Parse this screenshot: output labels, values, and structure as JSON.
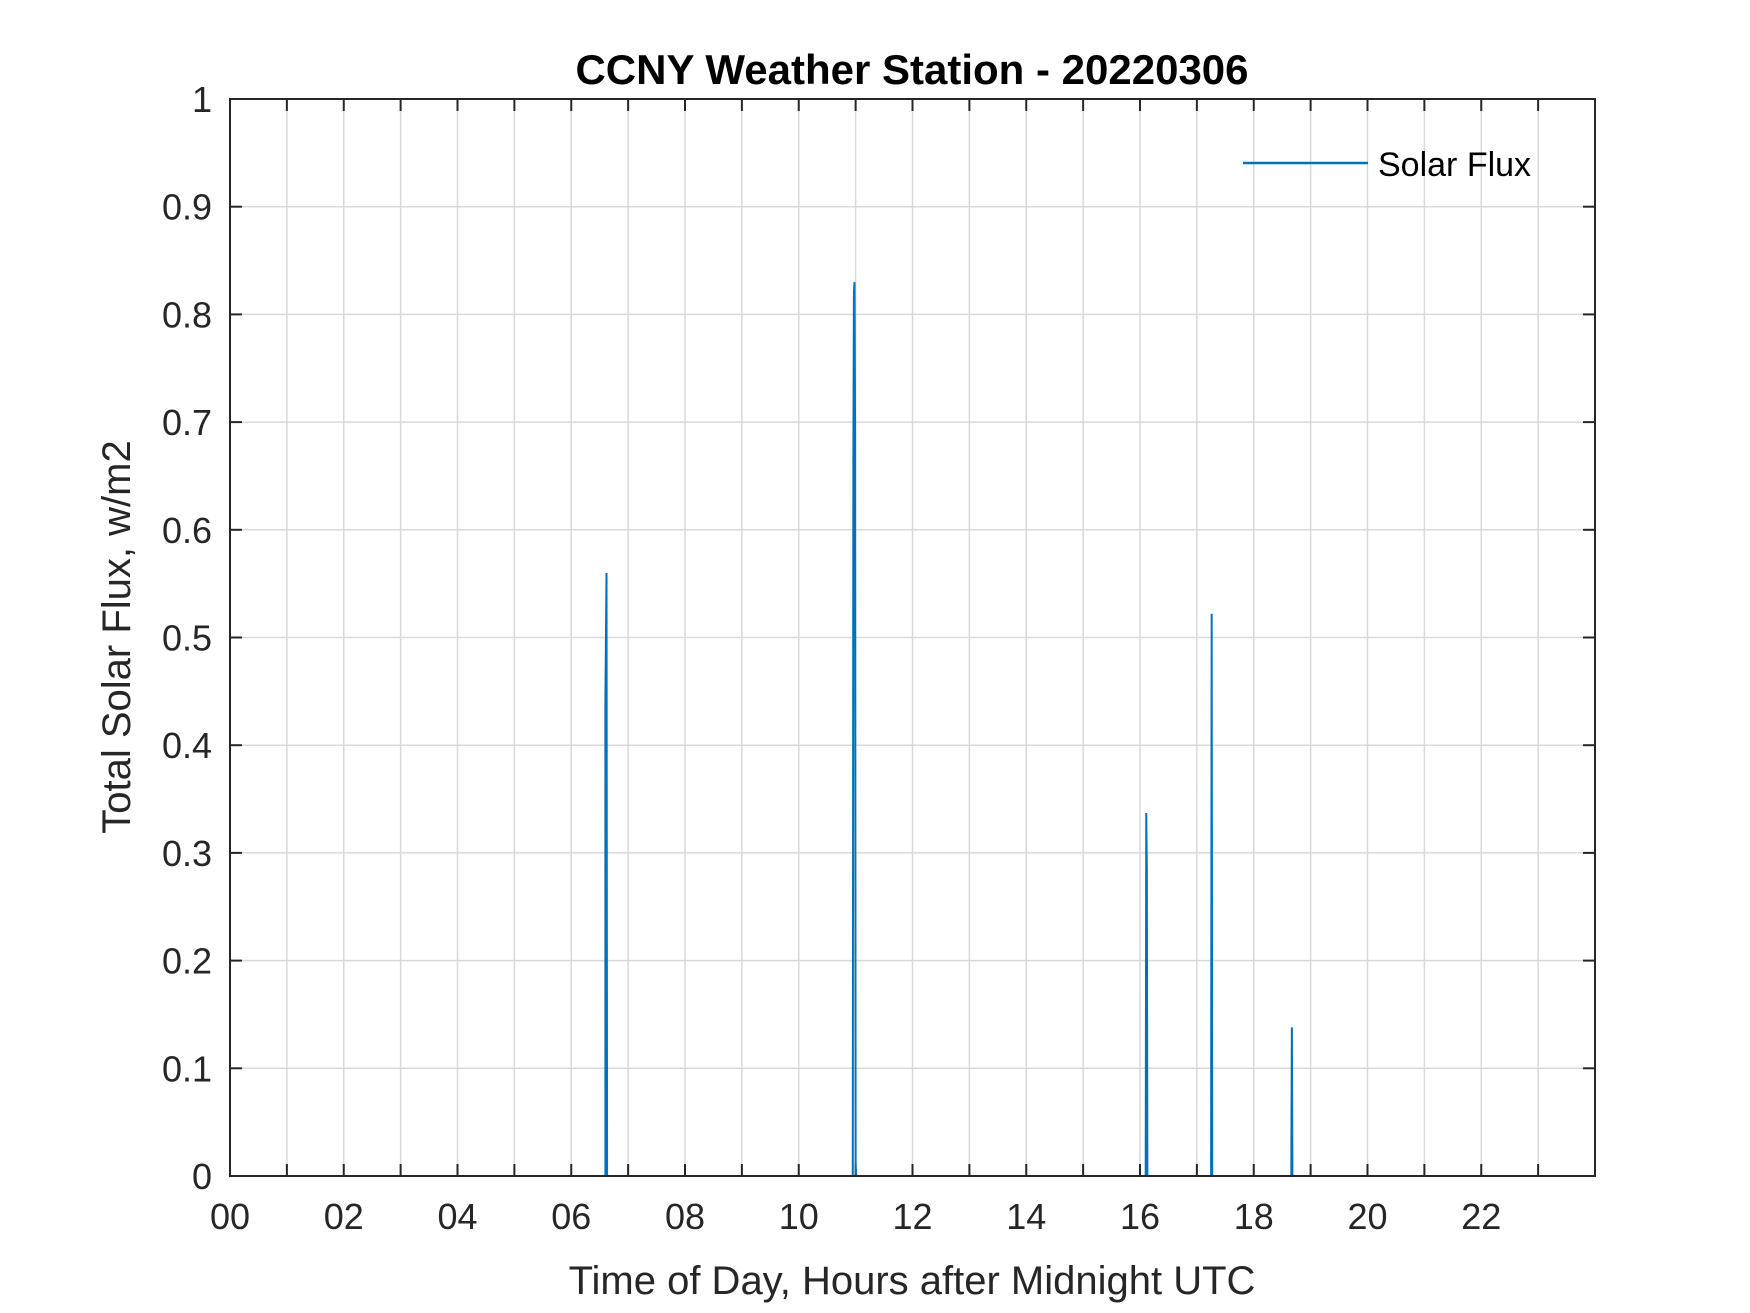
{
  "chart_data": {
    "type": "line",
    "title": "CCNY Weather Station - 20220306",
    "xlabel": "Time of Day, Hours after Midnight UTC",
    "ylabel": "Total Solar Flux, w/m2",
    "xlim": [
      0,
      24
    ],
    "ylim": [
      0,
      1
    ],
    "x_ticks": [
      0,
      2,
      4,
      6,
      8,
      10,
      12,
      14,
      16,
      18,
      20,
      22
    ],
    "x_tick_labels": [
      "00",
      "02",
      "04",
      "06",
      "08",
      "10",
      "12",
      "14",
      "16",
      "18",
      "20",
      "22"
    ],
    "x_minor_gridlines": [
      1,
      3,
      5,
      7,
      9,
      11,
      13,
      15,
      17,
      19,
      21,
      23
    ],
    "y_ticks": [
      0,
      0.1,
      0.2,
      0.3,
      0.4,
      0.5,
      0.6,
      0.7,
      0.8,
      0.9,
      1
    ],
    "y_tick_labels": [
      "0",
      "0.1",
      "0.2",
      "0.3",
      "0.4",
      "0.5",
      "0.6",
      "0.7",
      "0.8",
      "0.9",
      "1"
    ],
    "grid": true,
    "legend_position": "top-right",
    "series": [
      {
        "name": "Solar Flux",
        "color": "#0072BD",
        "points": [
          [
            0,
            0
          ],
          [
            6.6,
            0
          ],
          [
            6.6,
            0.44
          ],
          [
            6.62,
            0.56
          ],
          [
            6.63,
            0
          ],
          [
            10.95,
            0
          ],
          [
            10.96,
            0.665
          ],
          [
            10.97,
            0.82
          ],
          [
            10.98,
            0.83
          ],
          [
            10.99,
            0.7
          ],
          [
            11.0,
            0.01
          ],
          [
            11.01,
            0
          ],
          [
            16.1,
            0
          ],
          [
            16.11,
            0.337
          ],
          [
            16.12,
            0.285
          ],
          [
            16.13,
            0
          ],
          [
            17.25,
            0
          ],
          [
            17.26,
            0.522
          ],
          [
            17.27,
            0
          ],
          [
            18.66,
            0
          ],
          [
            18.67,
            0.138
          ],
          [
            18.68,
            0
          ],
          [
            24,
            0
          ]
        ]
      }
    ]
  }
}
